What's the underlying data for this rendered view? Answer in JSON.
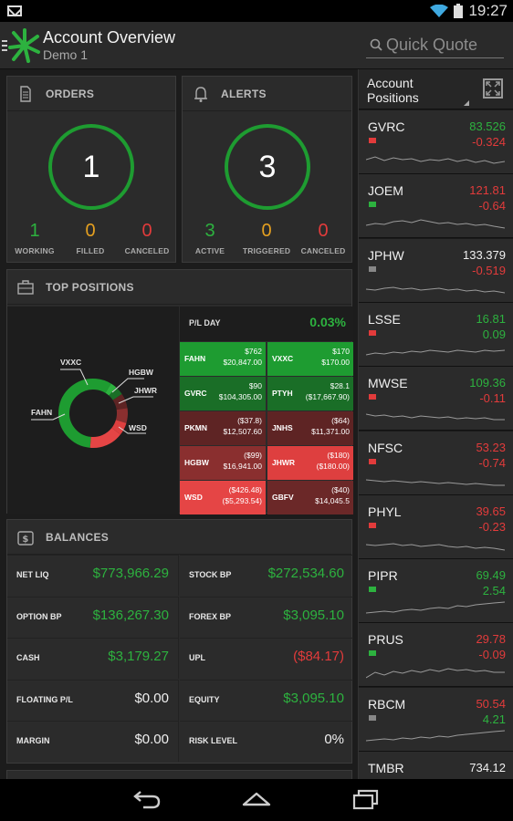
{
  "status_bar": {
    "time": "19:27"
  },
  "app_bar": {
    "title": "Account Overview",
    "subtitle": "Demo 1",
    "search_placeholder": "Quick Quote"
  },
  "orders": {
    "title": "ORDERS",
    "count": "1",
    "stats": [
      {
        "value": "1",
        "label": "WORKING"
      },
      {
        "value": "0",
        "label": "FILLED"
      },
      {
        "value": "0",
        "label": "CANCELED"
      }
    ]
  },
  "alerts": {
    "title": "ALERTS",
    "count": "3",
    "stats": [
      {
        "value": "3",
        "label": "ACTIVE"
      },
      {
        "value": "0",
        "label": "TRIGGERED"
      },
      {
        "value": "0",
        "label": "CANCELED"
      }
    ]
  },
  "top_positions": {
    "title": "TOP POSITIONS",
    "donut_labels": [
      "VXXC",
      "HGBW",
      "JHWR",
      "FAHN",
      "WSD"
    ],
    "pl_label": "P/L DAY",
    "pl_value": "0.03%",
    "tiles": [
      {
        "sym": "FAHN",
        "v1": "$762",
        "v2": "$20,847.00",
        "color": "#1e9c31"
      },
      {
        "sym": "VXXC",
        "v1": "$170",
        "v2": "$170.00",
        "color": "#1e9c31"
      },
      {
        "sym": "GVRC",
        "v1": "$90",
        "v2": "$104,305.00",
        "color": "#1a6e27"
      },
      {
        "sym": "PTYH",
        "v1": "$28.1",
        "v2": "($17,667.90)",
        "color": "#1a6e27"
      },
      {
        "sym": "PKMN",
        "v1": "($37.8)",
        "v2": "$12,507.60",
        "color": "#5e2424"
      },
      {
        "sym": "JNHS",
        "v1": "($64)",
        "v2": "$11,371.00",
        "color": "#5e2424"
      },
      {
        "sym": "HGBW",
        "v1": "($99)",
        "v2": "$16,941.00",
        "color": "#8a2f2f"
      },
      {
        "sym": "JHWR",
        "v1": "($180)",
        "v2": "($180.00)",
        "color": "#de3f3f"
      },
      {
        "sym": "WSD",
        "v1": "($426.48)",
        "v2": "($5,293.54)",
        "color": "#e54545"
      },
      {
        "sym": "GBFV",
        "v1": "($40)",
        "v2": "$14,045.5",
        "color": "#6b2828"
      }
    ]
  },
  "balances": {
    "title": "BALANCES",
    "rows": [
      {
        "key": "NET LIQ",
        "value": "$773,966.29",
        "tone": "green"
      },
      {
        "key": "STOCK BP",
        "value": "$272,534.60",
        "tone": "green"
      },
      {
        "key": "OPTION BP",
        "value": "$136,267.30",
        "tone": "green"
      },
      {
        "key": "FOREX BP",
        "value": "$3,095.10",
        "tone": "green"
      },
      {
        "key": "CASH",
        "value": "$3,179.27",
        "tone": "green"
      },
      {
        "key": "UPL",
        "value": "($84.17)",
        "tone": "red"
      },
      {
        "key": "FLOATING P/L",
        "value": "$0.00",
        "tone": "white"
      },
      {
        "key": "EQUITY",
        "value": "$3,095.10",
        "tone": "green"
      },
      {
        "key": "MARGIN",
        "value": "$0.00",
        "tone": "white"
      },
      {
        "key": "RISK LEVEL",
        "value": "0%",
        "tone": "white"
      }
    ]
  },
  "account_positions": {
    "title_line1": "Account",
    "title_line2": "Positions",
    "items": [
      {
        "sym": "GVRC",
        "price": "83.526",
        "change": "-0.324",
        "price_tone": "green",
        "change_tone": "red",
        "flag": "red"
      },
      {
        "sym": "JOEM",
        "price": "121.81",
        "change": "-0.64",
        "price_tone": "red",
        "change_tone": "red",
        "flag": "green"
      },
      {
        "sym": "JPHW",
        "price": "133.379",
        "change": "-0.519",
        "price_tone": "white",
        "change_tone": "red",
        "flag": "gray"
      },
      {
        "sym": "LSSE",
        "price": "16.81",
        "change": "0.09",
        "price_tone": "green",
        "change_tone": "green",
        "flag": "red"
      },
      {
        "sym": "MWSE",
        "price": "109.36",
        "change": "-0.11",
        "price_tone": "green",
        "change_tone": "red",
        "flag": "red"
      },
      {
        "sym": "NFSC",
        "price": "53.23",
        "change": "-0.74",
        "price_tone": "red",
        "change_tone": "red",
        "flag": "red"
      },
      {
        "sym": "PHYL",
        "price": "39.65",
        "change": "-0.23",
        "price_tone": "red",
        "change_tone": "red",
        "flag": "red"
      },
      {
        "sym": "PIPR",
        "price": "69.49",
        "change": "2.54",
        "price_tone": "green",
        "change_tone": "green",
        "flag": "green"
      },
      {
        "sym": "PRUS",
        "price": "29.78",
        "change": "-0.09",
        "price_tone": "red",
        "change_tone": "red",
        "flag": "green"
      },
      {
        "sym": "RBCM",
        "price": "50.54",
        "change": "4.21",
        "price_tone": "red",
        "change_tone": "green",
        "flag": "gray"
      },
      {
        "sym": "TMBR",
        "price": "734.12",
        "change": "",
        "price_tone": "white",
        "change_tone": "white",
        "flag": "gray"
      }
    ]
  },
  "colors": {
    "green": "#2db23f",
    "red": "#e23b3b",
    "orange": "#e5a020",
    "accent_ring": "#1e9c31"
  }
}
